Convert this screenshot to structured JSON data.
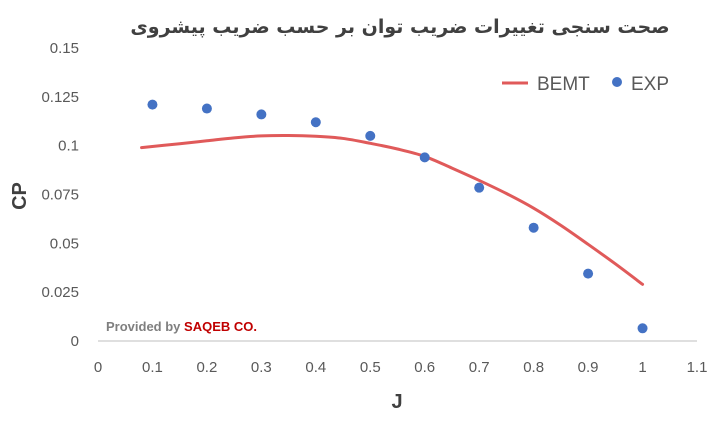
{
  "chart_data": {
    "type": "line",
    "title": "صحت سنجی تغییرات ضریب توان بر حسب ضریب پیشروی",
    "xlabel": "J",
    "ylabel": "CP",
    "xlim": [
      0,
      1.1
    ],
    "ylim": [
      0,
      0.15
    ],
    "x_ticks": [
      "0",
      "0.1",
      "0.2",
      "0.3",
      "0.4",
      "0.5",
      "0.6",
      "0.7",
      "0.8",
      "0.9",
      "1",
      "1.1"
    ],
    "y_ticks": [
      "0",
      "0.025",
      "0.05",
      "0.075",
      "0.1",
      "0.125",
      "0.15"
    ],
    "grid": false,
    "legend": "top-right",
    "series": [
      {
        "name": "BEMT",
        "kind": "line",
        "color": "#e05a5a",
        "x": [
          0.08,
          0.15,
          0.2,
          0.25,
          0.3,
          0.35,
          0.4,
          0.45,
          0.5,
          0.55,
          0.6,
          0.65,
          0.7,
          0.75,
          0.8,
          0.85,
          0.9,
          0.95,
          1.0
        ],
        "y": [
          0.099,
          0.101,
          0.1025,
          0.104,
          0.105,
          0.1052,
          0.1048,
          0.1037,
          0.1012,
          0.0983,
          0.0945,
          0.0885,
          0.0822,
          0.0755,
          0.068,
          0.0592,
          0.0495,
          0.0395,
          0.029
        ]
      },
      {
        "name": "EXP",
        "kind": "scatter",
        "color": "#4472c4",
        "x": [
          0.1,
          0.2,
          0.3,
          0.4,
          0.5,
          0.6,
          0.7,
          0.8,
          0.9,
          1.0
        ],
        "y": [
          0.121,
          0.119,
          0.116,
          0.112,
          0.105,
          0.094,
          0.0785,
          0.058,
          0.0345,
          0.0065
        ]
      }
    ],
    "annotation": {
      "prefix": "Provided by ",
      "brand": "SAQEB CO.",
      "prefix_color": "#7f7f7f",
      "brand_color": "#c00000"
    }
  }
}
